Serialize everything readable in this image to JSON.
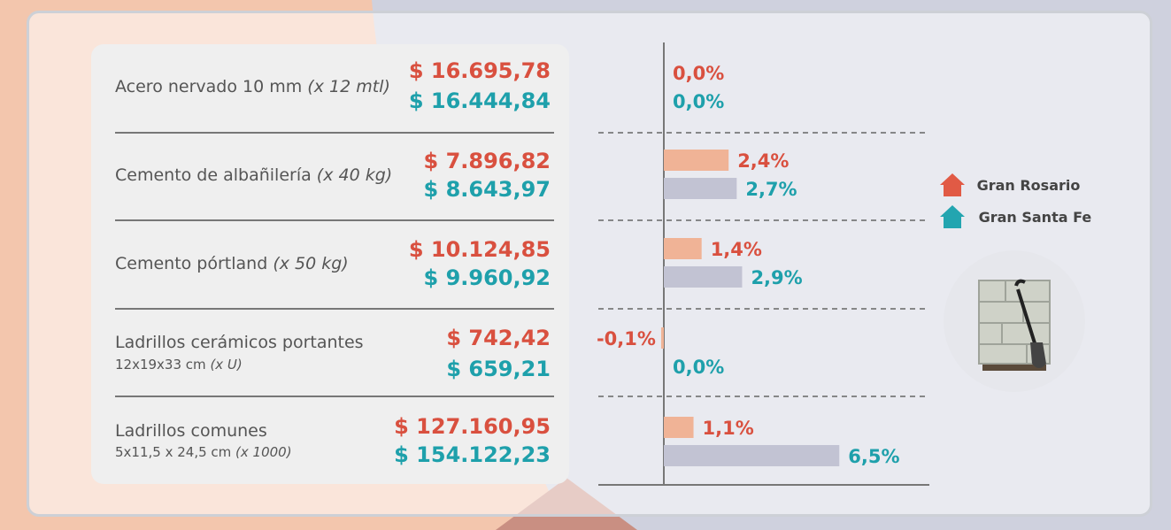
{
  "legend": {
    "rosario": "Gran Rosario",
    "santafe": "Gran Santa Fe"
  },
  "colors": {
    "rosario_text": "#d9503f",
    "santafe_text": "#1ea0ab",
    "rosario_bar": "#f0b396",
    "santafe_bar": "#c2c3d3"
  },
  "rows": [
    {
      "name": "Acero nervado 10 mm",
      "unit": "(x 12 mtl)",
      "sub": "",
      "sub_unit": "",
      "price_rosario": "$ 16.695,78",
      "price_santafe": "$ 16.444,84"
    },
    {
      "name": "Cemento de albañilería",
      "unit": "(x 40 kg)",
      "sub": "",
      "sub_unit": "",
      "price_rosario": "$ 7.896,82",
      "price_santafe": "$ 8.643,97"
    },
    {
      "name": "Cemento pórtland",
      "unit": "(x 50 kg)",
      "sub": "",
      "sub_unit": "",
      "price_rosario": "$ 10.124,85",
      "price_santafe": "$ 9.960,92"
    },
    {
      "name": "Ladrillos cerámicos portantes",
      "unit": "",
      "sub": "12x19x33 cm",
      "sub_unit": "(x U)",
      "price_rosario": "$ 742,42",
      "price_santafe": "$ 659,21"
    },
    {
      "name": "Ladrillos comunes",
      "unit": "",
      "sub": "5x11,5 x 24,5 cm",
      "sub_unit": "(x 1000)",
      "price_rosario": "$ 127.160,95",
      "price_santafe": "$ 154.122,23"
    }
  ],
  "chart_data": {
    "type": "bar",
    "orientation": "horizontal",
    "categories": [
      "Acero nervado 10 mm (x 12 mtl)",
      "Cemento de albañilería (x 40 kg)",
      "Cemento pórtland (x 50 kg)",
      "Ladrillos cerámicos portantes 12x19x33 cm (x U)",
      "Ladrillos comunes 5x11,5 x 24,5 cm (x 1000)"
    ],
    "series": [
      {
        "name": "Gran Rosario",
        "values": [
          0.0,
          2.4,
          1.4,
          -0.1,
          1.1
        ],
        "labels": [
          "0,0%",
          "2,4%",
          "1,4%",
          "-0,1%",
          "1,1%"
        ]
      },
      {
        "name": "Gran Santa Fe",
        "values": [
          0.0,
          2.7,
          2.9,
          0.0,
          6.5
        ],
        "labels": [
          "0,0%",
          "2,7%",
          "2,9%",
          "0,0%",
          "6,5%"
        ]
      }
    ],
    "unit": "%",
    "legend_position": "right"
  }
}
